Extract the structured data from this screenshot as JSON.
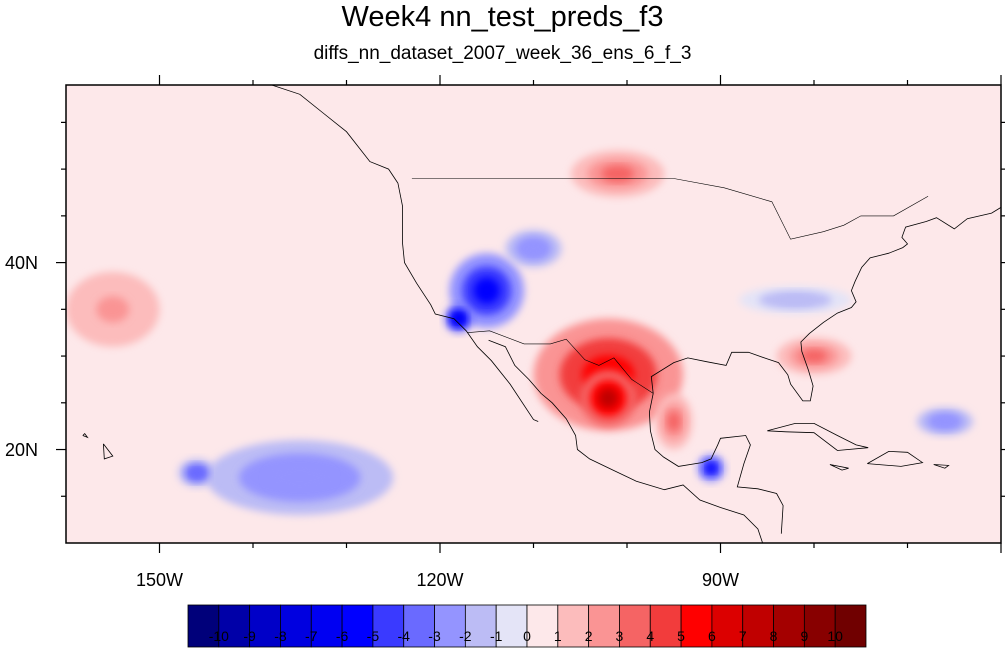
{
  "title": "Week4 nn_test_preds_f3",
  "subtitle": "diffs_nn_dataset_2007_week_36_ens_6_f_3",
  "map": {
    "projection": "cylindrical-equidistant",
    "lon_range": [
      -160,
      -60
    ],
    "lat_range": [
      10,
      59
    ],
    "background_color": "#fde8ea",
    "coastline_color": "#000000",
    "lon_ticks": [
      {
        "value": -150,
        "label": "150W"
      },
      {
        "value": -120,
        "label": "120W"
      },
      {
        "value": -90,
        "label": "90W"
      }
    ],
    "lat_ticks": [
      {
        "value": 40,
        "label": "40N"
      },
      {
        "value": 20,
        "label": "20N"
      }
    ]
  },
  "colorbar": {
    "labels": [
      "-10",
      "-9",
      "-8",
      "-7",
      "-6",
      "-5",
      "-4",
      "-3",
      "-2",
      "-1",
      "0",
      "1",
      "2",
      "3",
      "4",
      "5",
      "6",
      "7",
      "8",
      "9",
      "10"
    ],
    "colors": [
      "#00007a",
      "#0000a8",
      "#0000c8",
      "#0000e0",
      "#0000f2",
      "#0000ff",
      "#3a3aff",
      "#6a6aff",
      "#9494ff",
      "#bcbcf5",
      "#e4e4f7",
      "#fde8ea",
      "#fcbcbc",
      "#fa9494",
      "#f56464",
      "#f23c3c",
      "#ff0000",
      "#dc0000",
      "#c00000",
      "#a40000",
      "#880000",
      "#700000"
    ]
  },
  "chart_data": {
    "type": "heatmap",
    "variable": "diffs",
    "colorbar_levels": [
      -10,
      -9,
      -8,
      -7,
      -6,
      -5,
      -4,
      -3,
      -2,
      -1,
      0,
      1,
      2,
      3,
      4,
      5,
      6,
      7,
      8,
      9,
      10
    ],
    "regions": [
      {
        "lon": -115,
        "lat": 37,
        "rlon": 4,
        "rlat": 4,
        "value": -6
      },
      {
        "lon": -118,
        "lat": 34,
        "rlon": 1.5,
        "rlat": 1.5,
        "value": -7
      },
      {
        "lon": -110,
        "lat": 41.5,
        "rlon": 3,
        "rlat": 2,
        "value": -3
      },
      {
        "lon": -102,
        "lat": 28,
        "rlon": 8,
        "rlat": 6,
        "value": 5
      },
      {
        "lon": -102,
        "lat": 25.5,
        "rlon": 3,
        "rlat": 3,
        "value": 7
      },
      {
        "lon": -101,
        "lat": 49.5,
        "rlon": 5,
        "rlat": 2.5,
        "value": 3
      },
      {
        "lon": -80,
        "lat": 30,
        "rlon": 4,
        "rlat": 2,
        "value": 3
      },
      {
        "lon": -91,
        "lat": 18,
        "rlon": 1.5,
        "rlat": 1.5,
        "value": -6
      },
      {
        "lon": -135,
        "lat": 17,
        "rlon": 10,
        "rlat": 4,
        "value": -3
      },
      {
        "lon": -146,
        "lat": 17.5,
        "rlon": 2,
        "rlat": 1.5,
        "value": -4
      },
      {
        "lon": -82,
        "lat": 36,
        "rlon": 6,
        "rlat": 1.5,
        "value": -2
      },
      {
        "lon": -155,
        "lat": 35,
        "rlon": 5,
        "rlat": 4,
        "value": 2
      },
      {
        "lon": -66,
        "lat": 23,
        "rlon": 3,
        "rlat": 1.5,
        "value": -3
      },
      {
        "lon": -95,
        "lat": 23,
        "rlon": 2,
        "rlat": 3,
        "value": 3
      }
    ]
  }
}
